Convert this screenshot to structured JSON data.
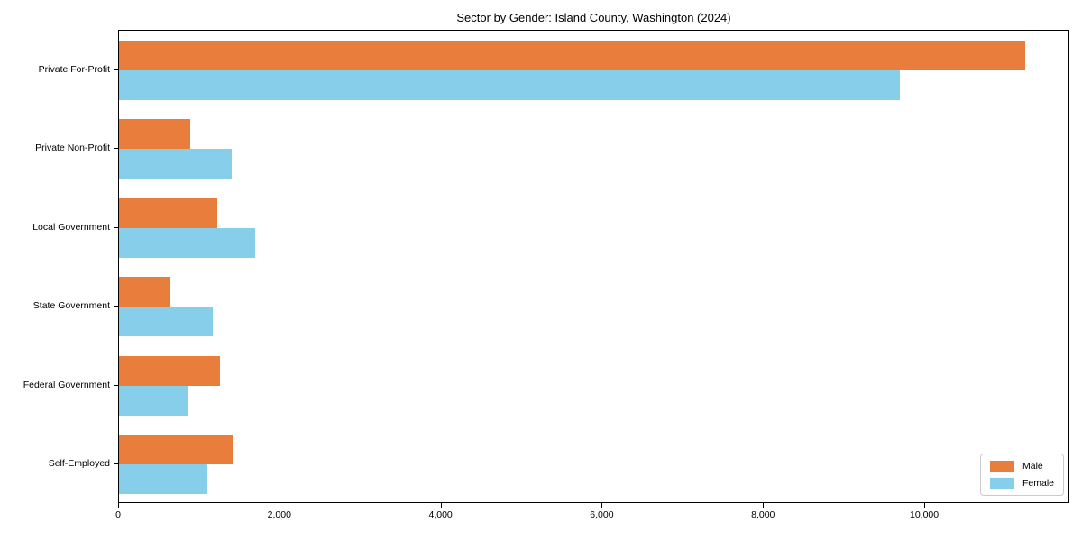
{
  "chart_data": {
    "type": "bar",
    "orientation": "horizontal",
    "title": "Sector by Gender: Island County, Washington (2024)",
    "categories": [
      "Private For-Profit",
      "Private Non-Profit",
      "Local Government",
      "State Government",
      "Federal Government",
      "Self-Employed"
    ],
    "series": [
      {
        "name": "Male",
        "color": "#e87d3c",
        "values": [
          11260,
          890,
          1220,
          630,
          1260,
          1410
        ]
      },
      {
        "name": "Female",
        "color": "#87ceeb",
        "values": [
          9700,
          1400,
          1690,
          1160,
          860,
          1100
        ]
      }
    ],
    "xlabel": "",
    "ylabel": "",
    "xlim": [
      0,
      11800
    ],
    "xticks": [
      0,
      2000,
      4000,
      6000,
      8000,
      10000
    ],
    "xticklabels": [
      "0",
      "2,000",
      "4,000",
      "6,000",
      "8,000",
      "10,000"
    ],
    "grid": false,
    "legend": {
      "position": "lower-right",
      "entries": [
        "Male",
        "Female"
      ]
    },
    "colors": {
      "male": "#e87d3c",
      "female": "#87ceeb",
      "spine": "#000000",
      "legend_border": "#cccccc"
    }
  }
}
